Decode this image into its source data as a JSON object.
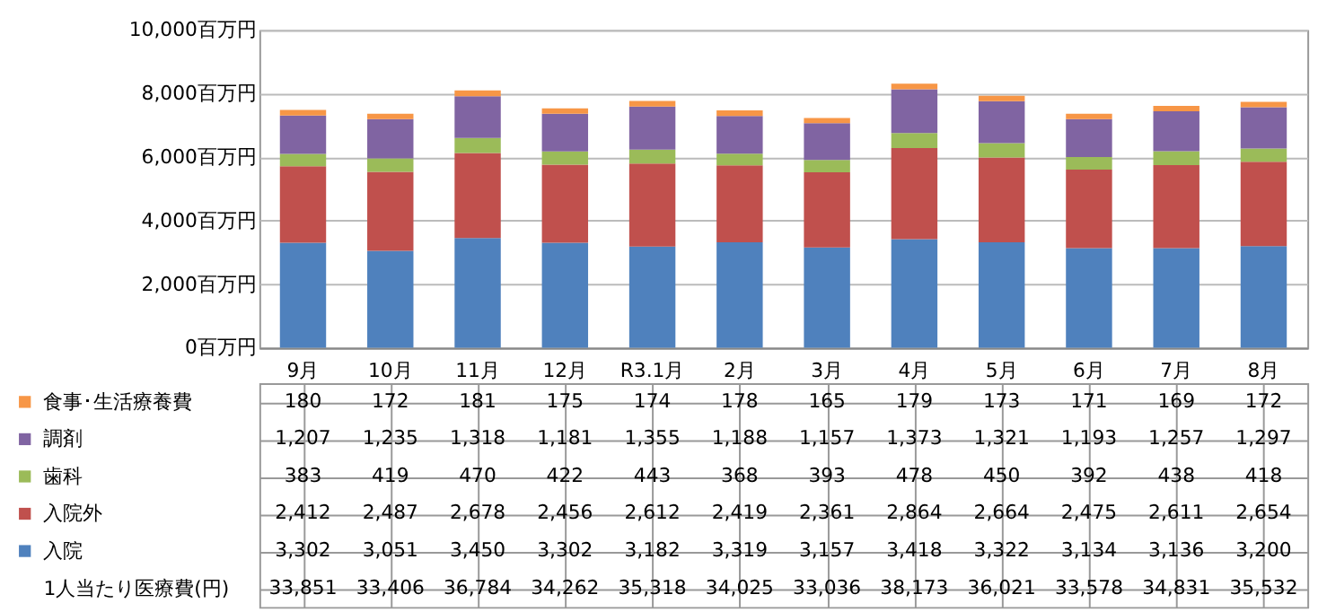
{
  "chart_data": [
    {
      "type": "bar",
      "stacked": true,
      "categories": [
        "9月",
        "10月",
        "11月",
        "12月",
        "R3.1月",
        "2月",
        "3月",
        "4月",
        "5月",
        "6月",
        "7月",
        "8月"
      ],
      "ylim": [
        0,
        10000
      ],
      "yticks": [
        {
          "value": 0,
          "label": "0百万円"
        },
        {
          "value": 2000,
          "label": "2,000百万円"
        },
        {
          "value": 4000,
          "label": "4,000百万円"
        },
        {
          "value": 6000,
          "label": "6,000百万円"
        },
        {
          "value": 8000,
          "label": "8,000百万円"
        },
        {
          "value": 10000,
          "label": "10,000百万円"
        }
      ],
      "grid": "y",
      "legend": "bottom left",
      "series": [
        {
          "name": "入院",
          "color": "#4f81bd",
          "values": [
            3302,
            3051,
            3450,
            3302,
            3182,
            3319,
            3157,
            3418,
            3322,
            3134,
            3136,
            3200
          ],
          "value_labels": [
            "3,302",
            "3,051",
            "3,450",
            "3,302",
            "3,182",
            "3,319",
            "3,157",
            "3,418",
            "3,322",
            "3,134",
            "3,136",
            "3,200"
          ]
        },
        {
          "name": "入院外",
          "color": "#c0504d",
          "values": [
            2412,
            2487,
            2678,
            2456,
            2612,
            2419,
            2361,
            2864,
            2664,
            2475,
            2611,
            2654
          ],
          "value_labels": [
            "2,412",
            "2,487",
            "2,678",
            "2,456",
            "2,612",
            "2,419",
            "2,361",
            "2,864",
            "2,664",
            "2,475",
            "2,611",
            "2,654"
          ]
        },
        {
          "name": "歯科",
          "color": "#9bbb59",
          "values": [
            383,
            419,
            470,
            422,
            443,
            368,
            393,
            478,
            450,
            392,
            438,
            418
          ],
          "value_labels": [
            "383",
            "419",
            "470",
            "422",
            "443",
            "368",
            "393",
            "478",
            "450",
            "392",
            "438",
            "418"
          ]
        },
        {
          "name": "調剤",
          "color": "#8064a2",
          "values": [
            1207,
            1235,
            1318,
            1181,
            1355,
            1188,
            1157,
            1373,
            1321,
            1193,
            1257,
            1297
          ],
          "value_labels": [
            "1,207",
            "1,235",
            "1,318",
            "1,181",
            "1,355",
            "1,188",
            "1,157",
            "1,373",
            "1,321",
            "1,193",
            "1,257",
            "1,297"
          ]
        },
        {
          "name": "食事･生活療養費",
          "color": "#f79646",
          "values": [
            180,
            172,
            181,
            175,
            174,
            178,
            165,
            179,
            173,
            171,
            169,
            172
          ],
          "value_labels": [
            "180",
            "172",
            "181",
            "175",
            "174",
            "178",
            "165",
            "179",
            "173",
            "171",
            "169",
            "172"
          ]
        }
      ]
    },
    {
      "type": "other",
      "title": "1人当たり医療費(円)",
      "value_labels": [
        "33,851",
        "33,406",
        "36,784",
        "34,262",
        "35,318",
        "34,025",
        "33,036",
        "38,173",
        "36,021",
        "33,578",
        "34,831",
        "35,532"
      ]
    }
  ]
}
